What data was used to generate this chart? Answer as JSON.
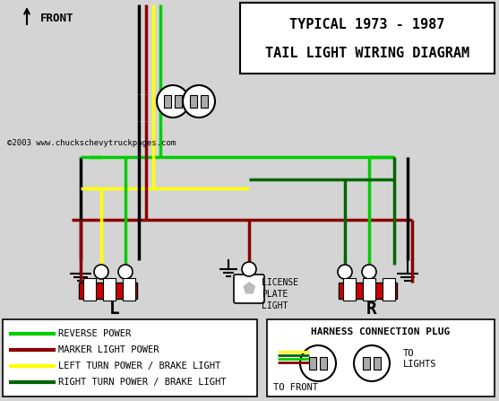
{
  "title_line1": "TYPICAL 1973 - 1987",
  "title_line2": "TAIL LIGHT WIRING DIAGRAM",
  "bg_color": "#d4d4d4",
  "wire_colors": {
    "green_bright": "#00cc00",
    "dark_red": "#8b0000",
    "yellow": "#ffff00",
    "dark_green": "#006600",
    "black": "#000000",
    "white": "#ffffff",
    "red": "#cc0000"
  },
  "legend_items": [
    {
      "color": "#00cc00",
      "label": "REVERSE POWER"
    },
    {
      "color": "#8b0000",
      "label": "MARKER LIGHT POWER"
    },
    {
      "color": "#ffff00",
      "label": "LEFT TURN POWER / BRAKE LIGHT"
    },
    {
      "color": "#006600",
      "label": "RIGHT TURN POWER / BRAKE LIGHT"
    }
  ],
  "copyright": "©2003 www.chuckschevytruckpages.com",
  "label_L": "L",
  "label_R": "R",
  "license_plate": "LICENSE\nPLATE\nLIGHT",
  "harness_title": "HARNESS CONNECTION PLUG",
  "to_front": "TO FRONT",
  "to_lights": "TO\nLIGHTS",
  "front_label": "FRONT"
}
